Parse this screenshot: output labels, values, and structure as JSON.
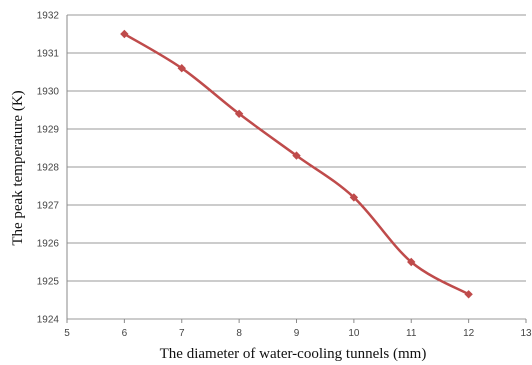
{
  "chart_data": {
    "type": "line",
    "title": "",
    "xlabel": "The diameter of water-cooling tunnels (mm)",
    "ylabel": "The peak temperature (K)",
    "xlim": [
      5,
      13
    ],
    "ylim": [
      1924,
      1932
    ],
    "x_ticks": [
      5,
      6,
      7,
      8,
      9,
      10,
      11,
      12,
      13
    ],
    "y_ticks": [
      1924,
      1925,
      1926,
      1927,
      1928,
      1929,
      1930,
      1931,
      1932
    ],
    "x_tick_labels": [
      "5",
      "6",
      "7",
      "8",
      "9",
      "10",
      "11",
      "12",
      "13"
    ],
    "y_tick_labels": [
      "1924",
      "1925",
      "1926",
      "1927",
      "1928",
      "1929",
      "1930",
      "1931",
      "1932"
    ],
    "grid": "horizontal",
    "legend": "none",
    "series": [
      {
        "x": [
          6,
          7,
          8,
          9,
          10,
          11,
          12
        ],
        "values": [
          1931.5,
          1930.6,
          1929.4,
          1928.3,
          1927.2,
          1925.5,
          1924.65
        ],
        "color": "#bf4b4b",
        "marker": "diamond",
        "smooth": true
      }
    ]
  }
}
